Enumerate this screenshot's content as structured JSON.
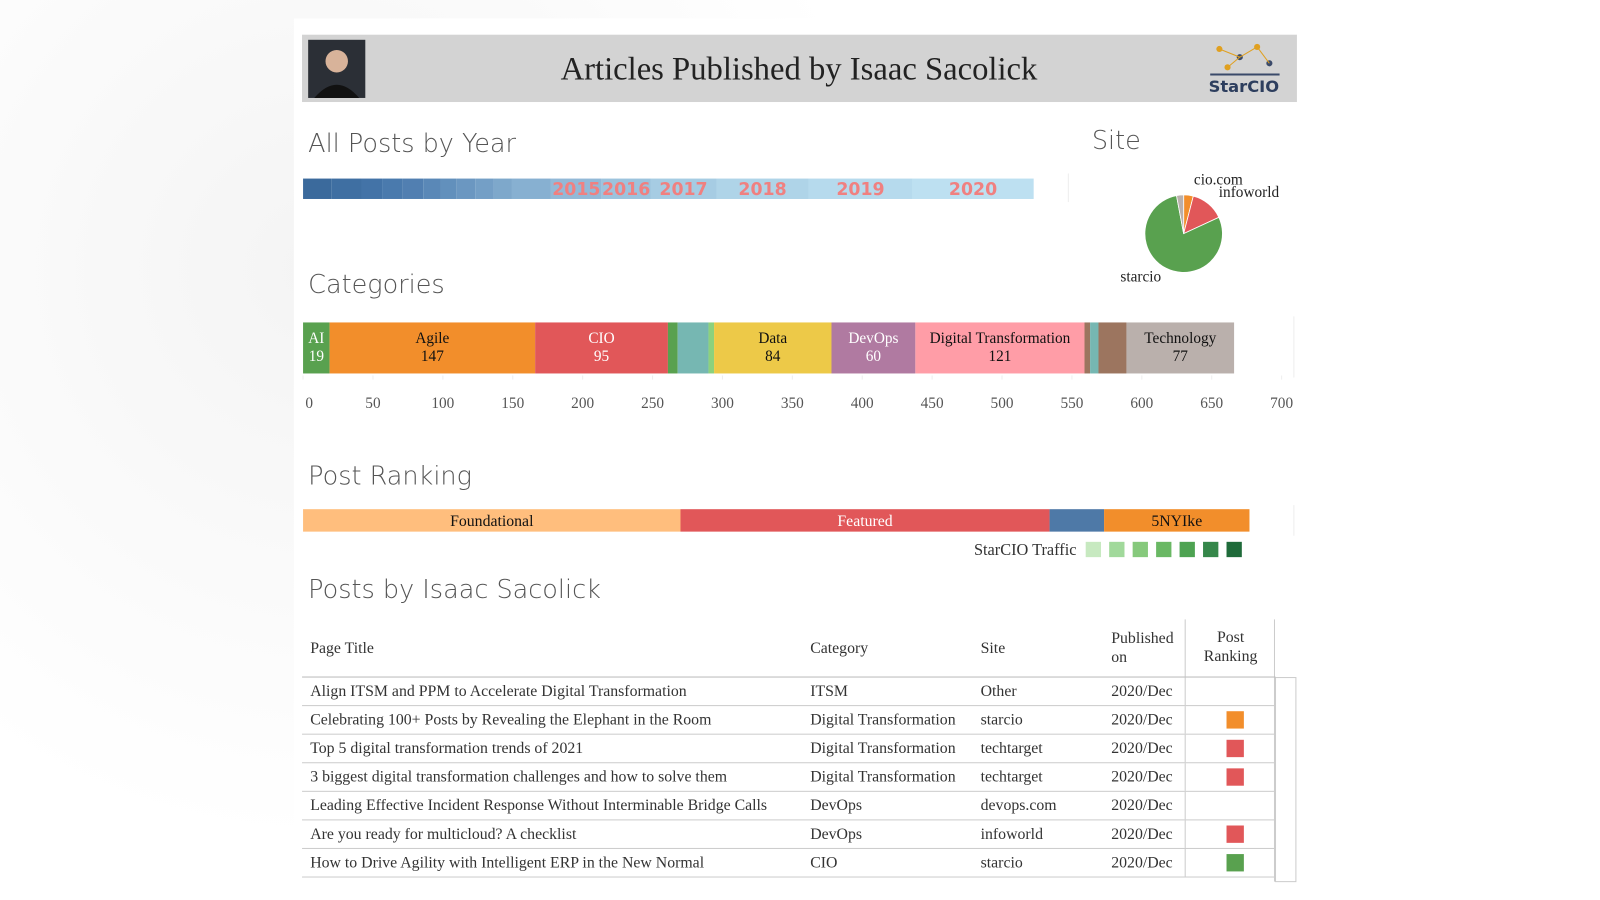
{
  "header": {
    "title": "Articles Published by Isaac Sacolick",
    "logo": "StarCIO"
  },
  "chart_data": [
    {
      "type": "stacked-bar",
      "title": "All Posts by Year",
      "categories": [
        null,
        null,
        null,
        null,
        null,
        null,
        null,
        null,
        null,
        null,
        null,
        "2015",
        "2016",
        "2017",
        "2018",
        "2019",
        "2020"
      ],
      "values": [
        26,
        28,
        19,
        19,
        19,
        16,
        15,
        17,
        17,
        17,
        36,
        47,
        45,
        61,
        85,
        96,
        112
      ],
      "colors": [
        "#3b6a9c",
        "#3f6fa2",
        "#4373a7",
        "#4a7aad",
        "#517fb1",
        "#5a88b7",
        "#6290bc",
        "#6b97c1",
        "#749fc6",
        "#7ea8cb",
        "#87b0d1",
        "#92b9d7",
        "#9cc3dd",
        "#a6cce3",
        "#afd4e8",
        "#b6daed",
        "#bde0f1"
      ],
      "label_color": "#f08080"
    },
    {
      "type": "pie",
      "title": "Site",
      "categories": [
        "cio.com",
        "infoworld",
        "starcio",
        null
      ],
      "values": [
        27,
        95,
        533,
        20
      ],
      "colors": [
        "#f28e2b",
        "#e15759",
        "#59a14f",
        "#bab0ac"
      ]
    },
    {
      "type": "stacked-bar",
      "title": "Categories",
      "categories": [
        "AI",
        "Agile",
        "CIO",
        null,
        null,
        null,
        "Data",
        "DevOps",
        "Digital Transformation",
        null,
        null,
        null,
        "Technology"
      ],
      "values": [
        19,
        147,
        95,
        7,
        22,
        4,
        84,
        60,
        121,
        4,
        6,
        20,
        77
      ],
      "value_labels": [
        "19",
        "147",
        "95",
        null,
        null,
        null,
        "84",
        "60",
        "121",
        null,
        null,
        null,
        "77"
      ],
      "colors": [
        "#59a14f",
        "#f28e2b",
        "#e15759",
        "#59a14f",
        "#76b7b2",
        "#8cd17d",
        "#edc948",
        "#b07aa1",
        "#ff9da7",
        "#9c755f",
        "#76b7b2",
        "#9c755f",
        "#bab0ac"
      ],
      "xlim": [
        0,
        700
      ],
      "xticks": [
        0,
        50,
        100,
        150,
        200,
        250,
        300,
        350,
        400,
        450,
        500,
        550,
        600,
        650,
        700
      ]
    },
    {
      "type": "stacked-bar",
      "title": "Post Ranking",
      "categories": [
        "Foundational",
        "Featured",
        null,
        "5NYIke"
      ],
      "values": [
        270,
        264,
        39,
        104
      ],
      "colors": [
        "#ffbe7d",
        "#e15759",
        "#4e79a7",
        "#f28e2b"
      ]
    }
  ],
  "legend": {
    "title": "StarCIO Traffic",
    "colors": [
      "#c7e9c0",
      "#a1d99b",
      "#86c97c",
      "#6ab864",
      "#4ea352",
      "#35874a",
      "#1f6b3a"
    ]
  },
  "table": {
    "title": "Posts by Isaac Sacolick",
    "columns": [
      "Page Title",
      "Category",
      "Site",
      "Published on",
      "Post Ranking"
    ],
    "rows": [
      [
        "Align ITSM and PPM to Accelerate Digital Transformation",
        "ITSM",
        "Other",
        "2020/Dec"
      ],
      [
        "Celebrating 100+ Posts by Revealing the Elephant in the Room",
        "Digital Transformation",
        "starcio",
        "2020/Dec"
      ],
      [
        "Top 5 digital transformation trends of 2021",
        "Digital Transformation",
        "techtarget",
        "2020/Dec"
      ],
      [
        "3 biggest digital transformation challenges and how to solve them",
        "Digital Transformation",
        "techtarget",
        "2020/Dec"
      ],
      [
        "Leading Effective Incident Response Without Interminable Bridge Calls",
        "DevOps",
        "devops.com",
        "2020/Dec"
      ],
      [
        "Are you ready for multicloud? A checklist",
        "DevOps",
        "infoworld",
        "2020/Dec"
      ],
      [
        "How to Drive Agility with Intelligent ERP in the New Normal",
        "CIO",
        "starcio",
        "2020/Dec"
      ]
    ],
    "ranking_colors": [
      null,
      "#f28e2b",
      "#e15759",
      "#e15759",
      null,
      "#e15759",
      "#59a14f"
    ]
  }
}
